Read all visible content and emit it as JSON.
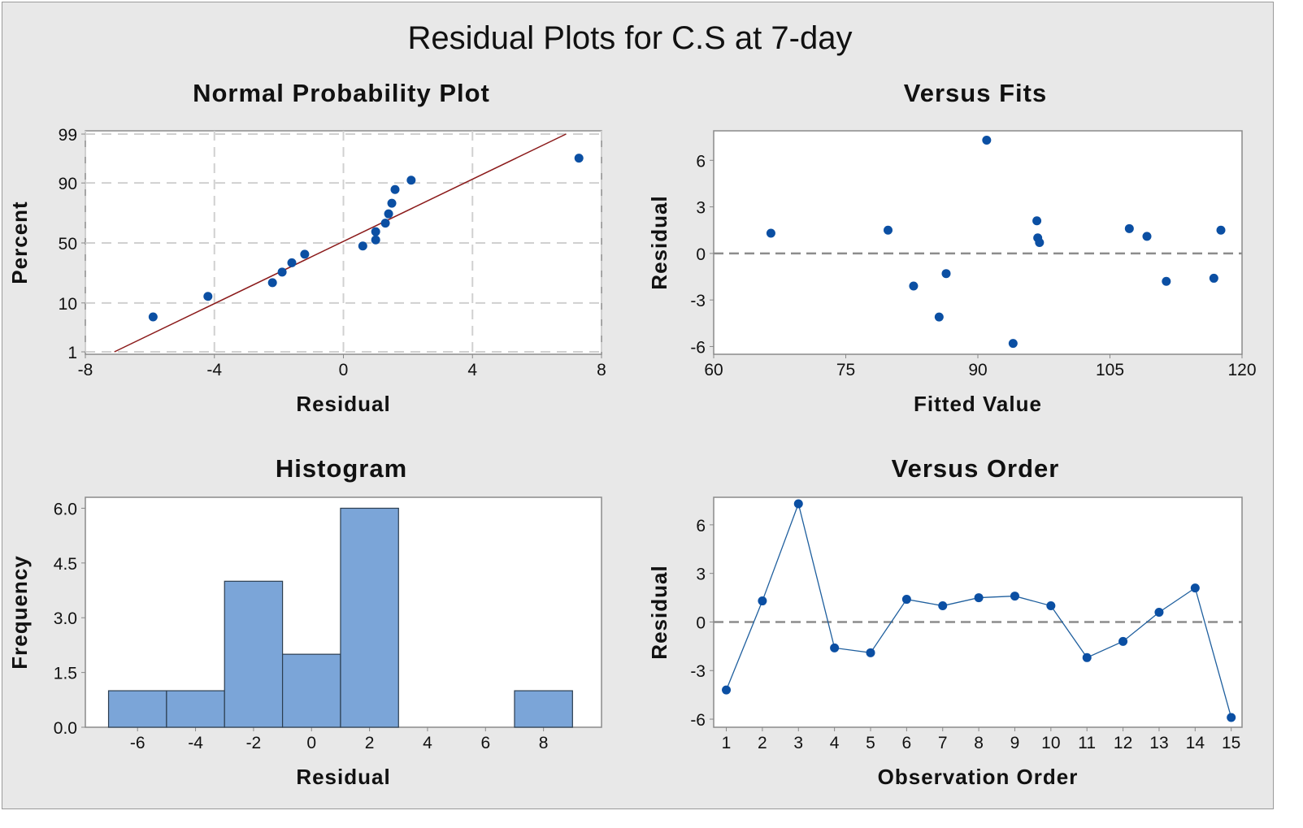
{
  "title": "Residual Plots for C.S at 7-day",
  "colors": {
    "point": "#0b4fa3",
    "fit_line": "#8b1a1a",
    "bar": "#7ba5d8",
    "bar_edge": "#2c3e50",
    "grid": "#d0d0d0",
    "ref_line": "#8c8c8c"
  },
  "chart_data": [
    {
      "type": "scatter",
      "title": "Normal Probability Plot",
      "xlabel": "Residual",
      "ylabel": "Percent",
      "xlim": [
        -8,
        8
      ],
      "ylim": [
        1,
        99
      ],
      "xticks": [
        "-8",
        "-4",
        "0",
        "4",
        "8"
      ],
      "yticks": [
        "1",
        "10",
        "50",
        "90",
        "99"
      ],
      "grid": true,
      "points": [
        [
          -5.9,
          5.7
        ],
        [
          -4.2,
          12.7
        ],
        [
          -2.2,
          19.8
        ],
        [
          -1.9,
          26.7
        ],
        [
          -1.6,
          33.6
        ],
        [
          -1.2,
          40.5
        ],
        [
          0.6,
          47.4
        ],
        [
          1.0,
          52.6
        ],
        [
          1.0,
          59.5
        ],
        [
          1.3,
          66.4
        ],
        [
          1.4,
          73.3
        ],
        [
          1.5,
          80.2
        ],
        [
          1.6,
          87.3
        ],
        [
          2.1,
          91.0
        ],
        [
          7.3,
          96.5
        ]
      ],
      "fit_line": {
        "from": [
          -7.1,
          1
        ],
        "to": [
          6.9,
          99
        ]
      }
    },
    {
      "type": "scatter",
      "title": "Versus Fits",
      "xlabel": "Fitted Value",
      "ylabel": "Residual",
      "xlim": [
        60,
        120
      ],
      "ylim": [
        -6.5,
        7.9
      ],
      "xticks": [
        "60",
        "75",
        "90",
        "105",
        "120"
      ],
      "yticks": [
        "-6",
        "-3",
        "0",
        "3",
        "6"
      ],
      "points": [
        [
          66.5,
          1.3
        ],
        [
          79.8,
          1.5
        ],
        [
          82.7,
          -2.1
        ],
        [
          85.6,
          -4.1
        ],
        [
          86.4,
          -1.3
        ],
        [
          91.0,
          7.3
        ],
        [
          94.0,
          -5.8
        ],
        [
          96.7,
          2.1
        ],
        [
          96.8,
          1.0
        ],
        [
          97.0,
          0.7
        ],
        [
          107.2,
          1.6
        ],
        [
          109.2,
          1.1
        ],
        [
          111.4,
          -1.8
        ],
        [
          116.8,
          -1.6
        ],
        [
          117.6,
          1.5
        ]
      ]
    },
    {
      "type": "bar",
      "title": "Histogram",
      "xlabel": "Residual",
      "ylabel": "Frequency",
      "xlim": [
        -7.8,
        10
      ],
      "ylim": [
        0,
        6.3
      ],
      "xticks": [
        "-6",
        "-4",
        "-2",
        "0",
        "2",
        "4",
        "6",
        "8"
      ],
      "yticks": [
        "0.0",
        "1.5",
        "3.0",
        "4.5",
        "6.0"
      ],
      "bin_width": 2,
      "bin_centers": [
        -6,
        -4,
        -2,
        0,
        2,
        4,
        6,
        8
      ],
      "values": [
        1,
        1,
        4,
        2,
        6,
        0,
        0,
        1
      ]
    },
    {
      "type": "line",
      "title": "Versus Order",
      "xlabel": "Observation Order",
      "ylabel": "Residual",
      "xlim": [
        0.65,
        15.3
      ],
      "ylim": [
        -6.5,
        7.7
      ],
      "xticks": [
        "1",
        "2",
        "3",
        "4",
        "5",
        "6",
        "7",
        "8",
        "9",
        "10",
        "11",
        "12",
        "13",
        "14",
        "15"
      ],
      "yticks": [
        "-6",
        "-3",
        "0",
        "3",
        "6"
      ],
      "x": [
        1,
        2,
        3,
        4,
        5,
        6,
        7,
        8,
        9,
        10,
        11,
        12,
        13,
        14,
        15
      ],
      "values": [
        -4.2,
        1.3,
        7.3,
        -1.6,
        -1.9,
        1.4,
        1.0,
        1.5,
        1.6,
        1.0,
        -2.2,
        -1.2,
        0.6,
        2.1,
        -5.9
      ]
    }
  ]
}
